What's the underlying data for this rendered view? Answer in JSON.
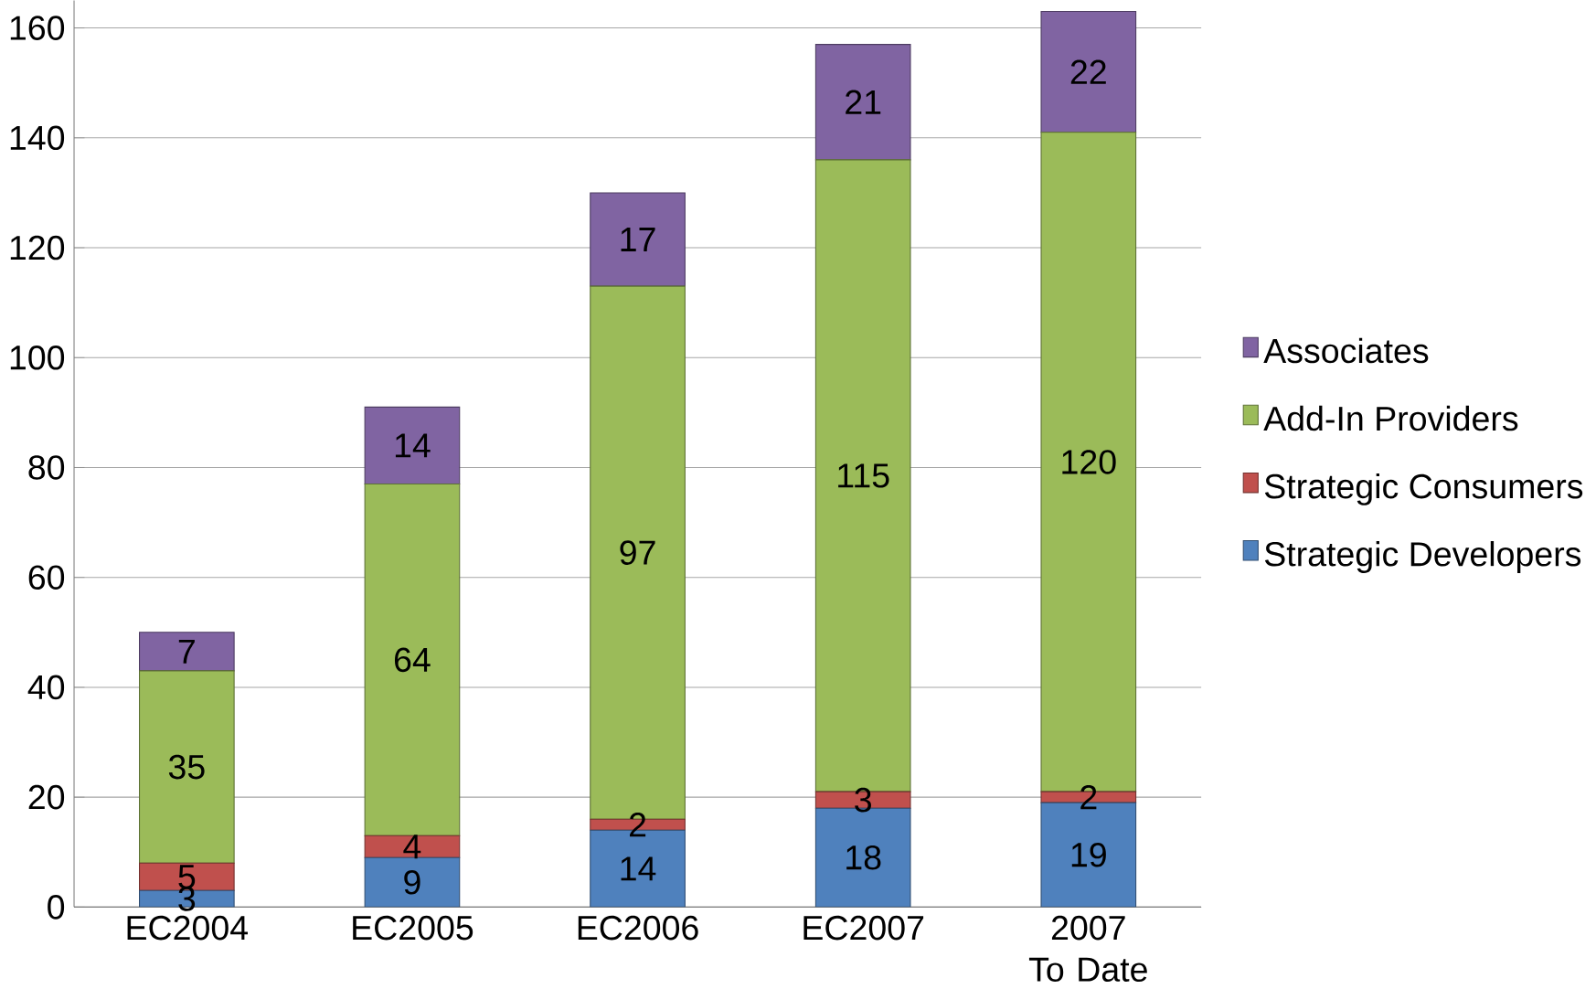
{
  "chart_data": {
    "type": "bar",
    "stacked": true,
    "categories": [
      "EC2004",
      "EC2005",
      "EC2006",
      "EC2007",
      "2007 To Date"
    ],
    "series": [
      {
        "name": "Strategic Developers",
        "color": "#4f81bd",
        "values": [
          3,
          9,
          14,
          18,
          19
        ]
      },
      {
        "name": "Strategic Consumers",
        "color": "#c0504d",
        "values": [
          5,
          4,
          2,
          3,
          2
        ]
      },
      {
        "name": "Add-In Providers",
        "color": "#9bbb59",
        "values": [
          35,
          64,
          97,
          115,
          120
        ]
      },
      {
        "name": "Associates",
        "color": "#8064a2",
        "values": [
          7,
          14,
          17,
          21,
          22
        ]
      }
    ],
    "ylim": [
      0,
      165
    ],
    "yticks": [
      0,
      20,
      40,
      60,
      80,
      100,
      120,
      140,
      160
    ],
    "grid": "y",
    "legend": "right",
    "data_labels": true
  }
}
